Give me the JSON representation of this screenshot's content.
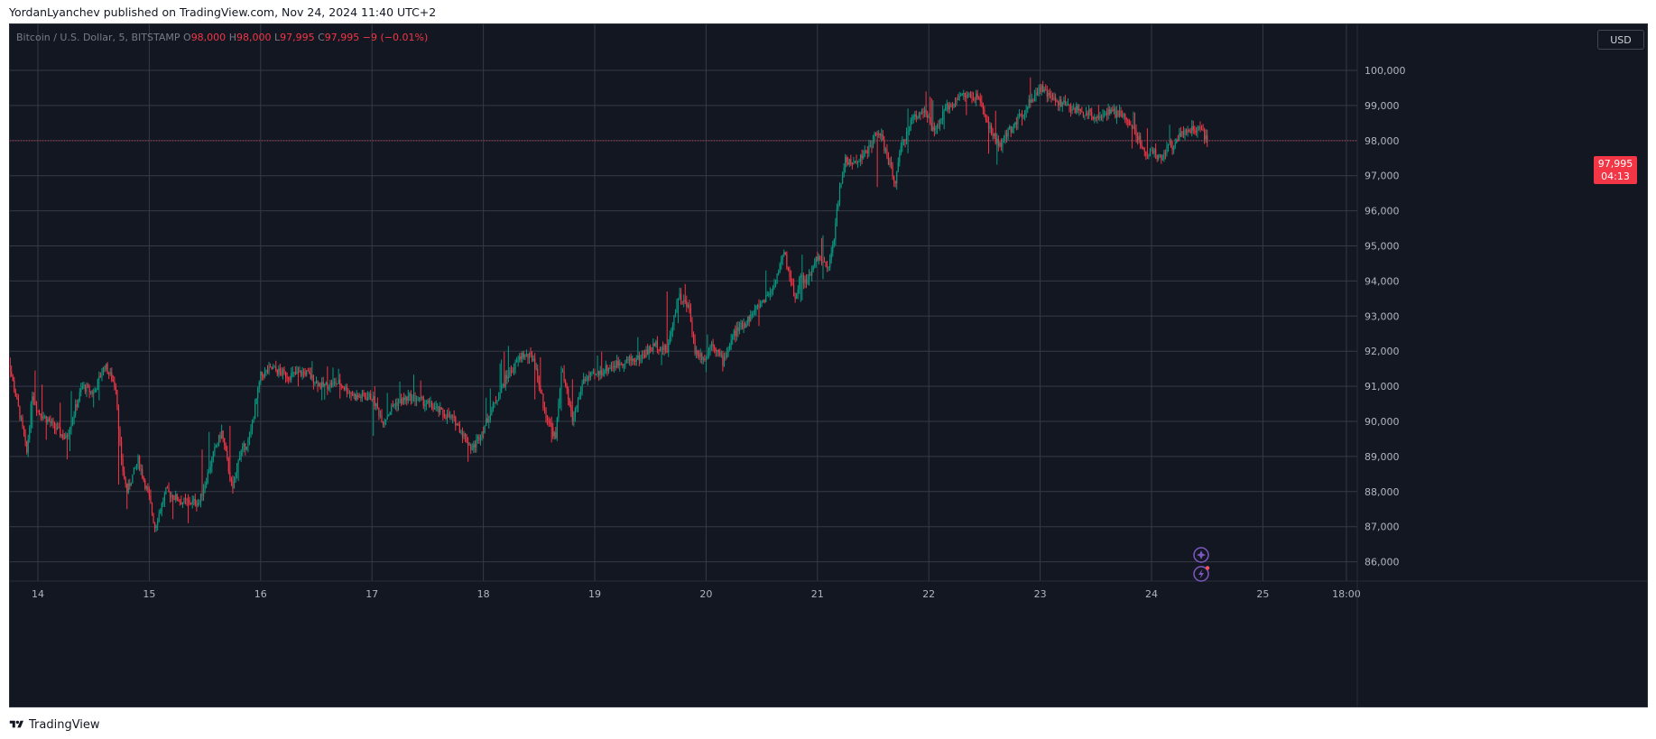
{
  "header": {
    "published_text": "YordanLyanchev published on TradingView.com, Nov 24, 2024 11:40 UTC+2"
  },
  "legend": {
    "symbol": "Bitcoin / U.S. Dollar, 5, BITSTAMP",
    "o_label": "O",
    "o_value": "98,000",
    "h_label": "H",
    "h_value": "98,000",
    "l_label": "L",
    "l_value": "97,995",
    "c_label": "C",
    "c_value": "97,995",
    "change": "−9 (−0.01%)"
  },
  "price_axis": {
    "currency_button": "USD",
    "last_price": "97,995",
    "countdown": "04:13"
  },
  "footer": {
    "brand": "TradingView"
  },
  "colors": {
    "background": "#131722",
    "grid": "#363a45",
    "up_candle": "#089981",
    "down_candle": "#f23645",
    "axis_text": "#b2b5be"
  },
  "icons": [
    "sparkle-icon",
    "lightning-icon",
    "tradingview-logo-icon"
  ],
  "chart_data": {
    "type": "candlestick",
    "title": "Bitcoin / U.S. Dollar, 5, BITSTAMP",
    "xlabel": "",
    "ylabel": "",
    "interval": "5",
    "ylim": [
      85500,
      101000
    ],
    "grid": true,
    "x_tick_labels": [
      "14",
      "15",
      "16",
      "17",
      "18",
      "19",
      "20",
      "21",
      "22",
      "23",
      "24",
      "25",
      "18:00"
    ],
    "y_tick_labels": [
      "86,000",
      "87,000",
      "88,000",
      "89,000",
      "90,000",
      "91,000",
      "92,000",
      "93,000",
      "94,000",
      "95,000",
      "96,000",
      "97,000",
      "98,000",
      "99,000",
      "100,000"
    ],
    "price_path": {
      "x": [
        13.7,
        13.75,
        13.85,
        13.9,
        13.95,
        14.0,
        14.1,
        14.25,
        14.4,
        14.5,
        14.6,
        14.7,
        14.75,
        14.8,
        14.9,
        15.0,
        15.05,
        15.15,
        15.3,
        15.45,
        15.6,
        15.65,
        15.75,
        15.8,
        15.9,
        16.0,
        16.1,
        16.25,
        16.4,
        16.55,
        16.7,
        16.85,
        17.0,
        17.1,
        17.2,
        17.35,
        17.5,
        17.6,
        17.75,
        17.9,
        18.0,
        18.1,
        18.2,
        18.35,
        18.45,
        18.55,
        18.65,
        18.7,
        18.75,
        18.8,
        18.9,
        19.0,
        19.1,
        19.25,
        19.4,
        19.55,
        19.65,
        19.75,
        19.85,
        19.9,
        20.0,
        20.05,
        20.15,
        20.25,
        20.35,
        20.5,
        20.6,
        20.7,
        20.8,
        20.85,
        20.9,
        21.0,
        21.1,
        21.15,
        21.2,
        21.25,
        21.3,
        21.45,
        21.55,
        21.7,
        21.75,
        21.85,
        21.95,
        22.05,
        22.15,
        22.3,
        22.45,
        22.55,
        22.65,
        22.7,
        22.8,
        22.9,
        23.0,
        23.1,
        23.3,
        23.5,
        23.65,
        23.75,
        23.85,
        23.95,
        24.0,
        24.1,
        24.15,
        24.2,
        24.25,
        24.35,
        24.45,
        24.5
      ],
      "close": [
        93000,
        91500,
        90000,
        89100,
        90800,
        90300,
        90000,
        89500,
        91000,
        90800,
        91600,
        91000,
        88800,
        88000,
        88900,
        87800,
        87000,
        88000,
        87700,
        87700,
        89300,
        89700,
        88000,
        89000,
        89500,
        91300,
        91500,
        91300,
        91400,
        91000,
        91100,
        90700,
        90700,
        90000,
        90500,
        90700,
        90500,
        90300,
        90000,
        89200,
        89800,
        90500,
        91200,
        91900,
        91800,
        90300,
        89500,
        91500,
        90800,
        90000,
        91200,
        91300,
        91500,
        91700,
        91800,
        92200,
        92000,
        93600,
        93200,
        92000,
        91800,
        92300,
        91700,
        92500,
        92800,
        93400,
        93800,
        94800,
        93500,
        94200,
        93900,
        94700,
        94300,
        95300,
        96600,
        97500,
        97300,
        97700,
        98300,
        96800,
        97800,
        98600,
        98900,
        98200,
        98900,
        99300,
        99200,
        98300,
        97800,
        98200,
        98600,
        99100,
        99500,
        99200,
        98900,
        98700,
        98800,
        98700,
        98300,
        97600,
        97700,
        97500,
        97900,
        97800,
        98200,
        98300,
        98300,
        97995
      ],
      "high": [
        93500,
        92500,
        91200,
        90600,
        91700,
        91200,
        90800,
        90400,
        91800,
        91700,
        91800,
        91700,
        89900,
        89300,
        89600,
        88800,
        88200,
        88600,
        88800,
        89000,
        90200,
        90700,
        89600,
        90000,
        90700,
        91800,
        91800,
        91800,
        91800,
        91600,
        91500,
        91300,
        91100,
        90700,
        91000,
        91400,
        91000,
        90800,
        90800,
        90200,
        90500,
        91200,
        92100,
        92400,
        92200,
        91600,
        92600,
        92700,
        91800,
        91200,
        91900,
        91800,
        92100,
        92400,
        92400,
        93000,
        93700,
        94100,
        93800,
        93100,
        92400,
        92700,
        92400,
        93200,
        93500,
        94000,
        94800,
        95000,
        94600,
        94800,
        94600,
        95000,
        95600,
        96900,
        97900,
        98000,
        98100,
        98500,
        98900,
        97500,
        98600,
        99100,
        99500,
        99100,
        99400,
        99400,
        99400,
        99000,
        98700,
        98900,
        99200,
        99800,
        99800,
        99400,
        99100,
        99000,
        99100,
        99000,
        98800,
        98400,
        98200,
        97900,
        98400,
        98600,
        98700,
        98600,
        98500,
        98300
      ],
      "low": [
        91800,
        89500,
        88200,
        88000,
        89800,
        89700,
        89400,
        88800,
        90200,
        90400,
        90800,
        88600,
        87800,
        87500,
        87600,
        86800,
        86700,
        87300,
        87100,
        87100,
        88500,
        88800,
        87800,
        88300,
        89000,
        90500,
        91100,
        91000,
        91000,
        90600,
        90700,
        90100,
        89600,
        89500,
        89900,
        90200,
        90000,
        89700,
        89300,
        88700,
        89200,
        89900,
        90600,
        91300,
        90800,
        89400,
        89400,
        90300,
        89800,
        89700,
        90500,
        90800,
        91000,
        91200,
        91200,
        91600,
        91600,
        92800,
        92200,
        91400,
        91400,
        91500,
        91400,
        92000,
        92300,
        92800,
        93300,
        93600,
        93300,
        93400,
        93600,
        94100,
        94000,
        95000,
        96000,
        97000,
        96900,
        97200,
        96600,
        95700,
        97200,
        97900,
        98300,
        97800,
        98400,
        98800,
        98500,
        97500,
        97200,
        97900,
        98200,
        98800,
        98900,
        98700,
        98500,
        98400,
        98400,
        98300,
        97600,
        97300,
        97200,
        97200,
        97500,
        97600,
        98000,
        98000,
        97900,
        97900
      ]
    },
    "last_price": 97995
  }
}
